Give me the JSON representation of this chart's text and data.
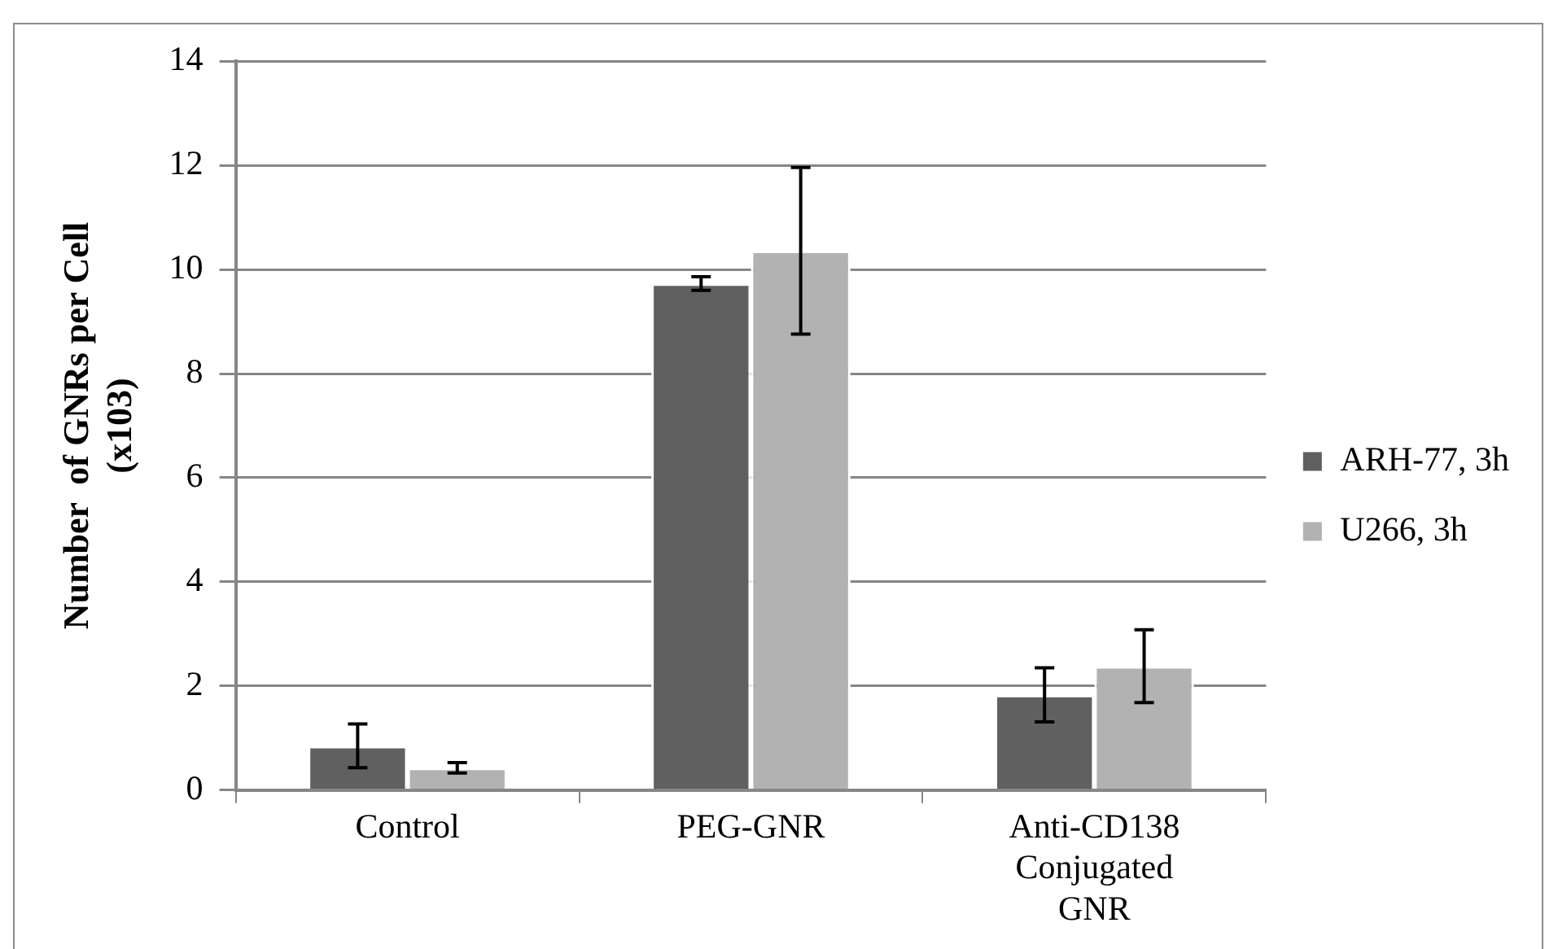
{
  "chart_data": {
    "type": "bar",
    "ylabel": "Number  of GNRs per Cell\n(x103)",
    "categories": [
      "Control",
      "PEG-GNR",
      "Anti-CD138 Conjugated GNR"
    ],
    "series": [
      {
        "name": "ARH-77, 3h",
        "color": "#606060",
        "values": [
          0.85,
          9.73,
          1.83
        ],
        "errors": [
          0.42,
          0.13,
          0.52
        ]
      },
      {
        "name": "U266, 3h",
        "color": "#b2b2b2",
        "values": [
          0.43,
          10.36,
          2.38
        ],
        "errors": [
          0.1,
          1.6,
          0.7
        ]
      }
    ],
    "ylim": [
      0,
      14
    ],
    "yticks": [
      0,
      2,
      4,
      6,
      8,
      10,
      12,
      14
    ],
    "grid": "y",
    "legend": "right"
  }
}
